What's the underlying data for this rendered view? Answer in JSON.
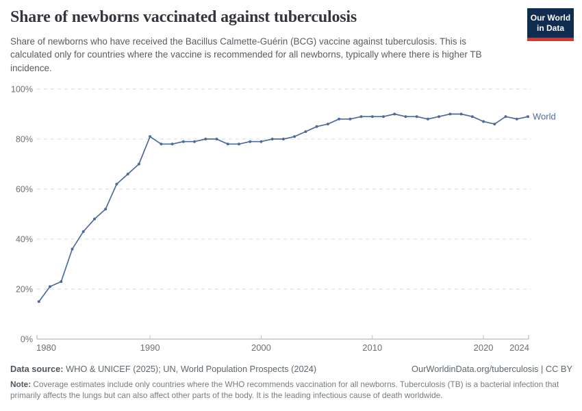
{
  "header": {
    "title": "Share of newborns vaccinated against tuberculosis",
    "subtitle": "Share of newborns who have received the Bacillus Calmette-Guérin (BCG) vaccine against tuberculosis. This is calculated only for countries where the vaccine is recommended for all newborns, typically where there is higher TB incidence.",
    "logo": {
      "line1": "Our World",
      "line2": "in Data",
      "bg_color": "#102d50",
      "accent_color": "#dc352b"
    }
  },
  "chart_data": {
    "type": "line",
    "title": "Share of newborns vaccinated against tuberculosis",
    "xlabel": "",
    "ylabel": "",
    "ylim": [
      0,
      100
    ],
    "yticks": [
      0,
      20,
      40,
      60,
      80,
      100
    ],
    "ytick_suffix": "%",
    "xticks": [
      1980,
      1990,
      2000,
      2010,
      2020,
      2024
    ],
    "grid": "dashed-horizontal",
    "legend_position": "end-of-line",
    "line_color": "#4c6a9c",
    "x": [
      1980,
      1981,
      1982,
      1983,
      1984,
      1985,
      1986,
      1987,
      1988,
      1989,
      1990,
      1991,
      1992,
      1993,
      1994,
      1995,
      1996,
      1997,
      1998,
      1999,
      2000,
      2001,
      2002,
      2003,
      2004,
      2005,
      2006,
      2007,
      2008,
      2009,
      2010,
      2011,
      2012,
      2013,
      2014,
      2015,
      2016,
      2017,
      2018,
      2019,
      2020,
      2021,
      2022,
      2023,
      2024
    ],
    "series": [
      {
        "name": "World",
        "color": "#4c6a9c",
        "values": [
          15,
          21,
          23,
          36,
          43,
          48,
          52,
          62,
          66,
          70,
          81,
          78,
          78,
          79,
          79,
          80,
          80,
          78,
          78,
          79,
          79,
          80,
          80,
          81,
          83,
          85,
          86,
          88,
          88,
          89,
          89,
          89,
          90,
          89,
          89,
          88,
          89,
          90,
          90,
          89,
          87,
          86,
          89,
          88,
          89
        ]
      }
    ]
  },
  "footer": {
    "source_label": "Data source:",
    "source_text": " WHO & UNICEF (2025); UN, World Population Prospects (2024)",
    "attribution": "OurWorldinData.org/tuberculosis | CC BY",
    "note_label": "Note:",
    "note_text": " Coverage estimates include only countries where the WHO recommends vaccination for all newborns. Tuberculosis (TB) is a bacterial infection that primarily affects the lungs but can also affect other parts of the body. It is the leading infectious cause of death worldwide."
  }
}
